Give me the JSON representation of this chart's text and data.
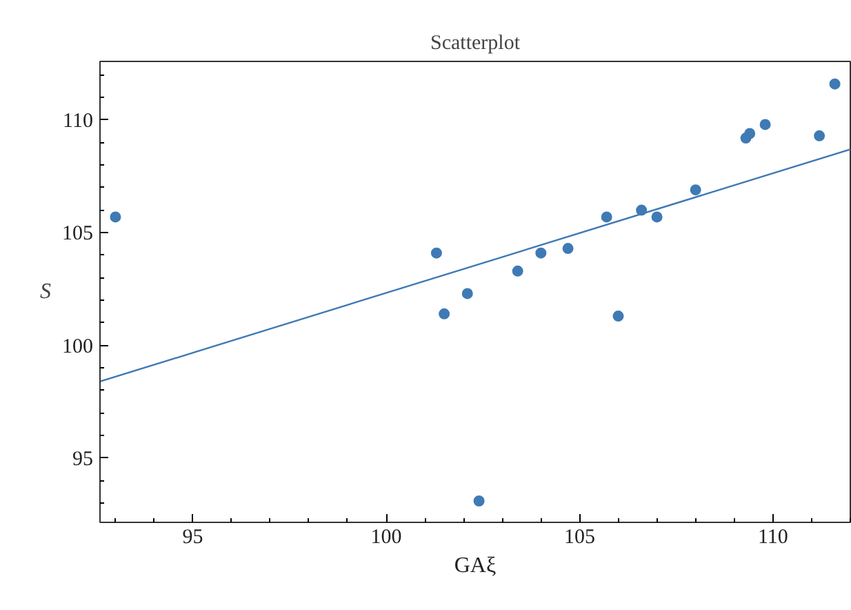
{
  "chart_data": {
    "type": "scatter",
    "title": "Scatterplot",
    "xlabel": "GAξ",
    "ylabel": "S",
    "xlim": [
      92.6,
      112.0
    ],
    "ylim": [
      92.15,
      112.6
    ],
    "xticks": [
      95,
      100,
      105,
      110
    ],
    "yticks": [
      95,
      100,
      105,
      110
    ],
    "grid": false,
    "series": [
      {
        "marker": "circle",
        "color": "#3f7ab5",
        "x": [
          93.0,
          101.3,
          101.5,
          102.1,
          102.4,
          103.4,
          104.0,
          104.7,
          105.7,
          106.0,
          106.6,
          107.0,
          108.0,
          109.3,
          109.4,
          109.8,
          111.2,
          111.6
        ],
        "values": [
          105.7,
          104.1,
          101.4,
          102.3,
          93.1,
          103.3,
          104.1,
          104.3,
          105.7,
          101.3,
          106.0,
          105.7,
          106.9,
          109.2,
          109.4,
          109.8,
          109.3,
          111.6
        ]
      },
      {
        "type": "line",
        "color": "#3f7ab5",
        "x": [
          92.6,
          112.0
        ],
        "values": [
          98.4,
          108.7
        ]
      }
    ]
  }
}
